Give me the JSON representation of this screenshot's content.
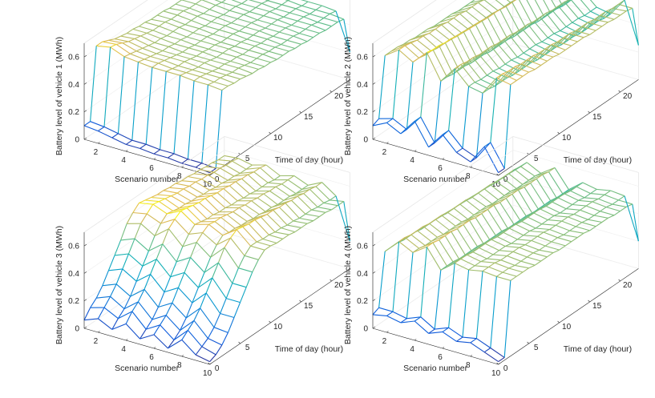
{
  "figure": {
    "background": "#ffffff",
    "box_color": "#e6e6e6",
    "axis_color": "#262626"
  },
  "chart_data": [
    {
      "type": "surface-mesh",
      "ylabel": "Battery level of vehicle 1 (MWh)",
      "xlabel": "Scenario number",
      "tlabel": "Time of day (hour)",
      "zlim": [
        0,
        0.7
      ],
      "zticks": [
        "0",
        "0.2",
        "0.4",
        "0.6"
      ],
      "xticks": [
        "2",
        "4",
        "6",
        "8",
        "10"
      ],
      "tticks": [
        "0",
        "5",
        "10",
        "15",
        "20"
      ],
      "scenarios": [
        1,
        2,
        3,
        4,
        5,
        6,
        7,
        8,
        9,
        10
      ],
      "hours": [
        0,
        1,
        2,
        3,
        4,
        5,
        6,
        7,
        8,
        9,
        10,
        11,
        12,
        13,
        14,
        15,
        16,
        17,
        18,
        19,
        20,
        21,
        22,
        23
      ],
      "levels": [
        [
          0.1,
          0.1,
          0.62,
          0.62,
          0.6,
          0.58,
          0.57,
          0.56,
          0.56,
          0.55,
          0.55,
          0.54,
          0.54,
          0.54,
          0.53,
          0.53,
          0.53,
          0.52,
          0.52,
          0.52,
          0.51,
          0.51,
          0.5,
          0.5
        ],
        [
          0.09,
          0.09,
          0.64,
          0.63,
          0.61,
          0.59,
          0.58,
          0.57,
          0.56,
          0.55,
          0.55,
          0.55,
          0.54,
          0.54,
          0.54,
          0.53,
          0.53,
          0.53,
          0.52,
          0.52,
          0.51,
          0.51,
          0.5,
          0.5
        ],
        [
          0.07,
          0.07,
          0.6,
          0.59,
          0.58,
          0.57,
          0.56,
          0.55,
          0.55,
          0.54,
          0.54,
          0.54,
          0.53,
          0.53,
          0.53,
          0.52,
          0.52,
          0.52,
          0.51,
          0.51,
          0.51,
          0.5,
          0.5,
          0.5
        ],
        [
          0.05,
          0.05,
          0.59,
          0.58,
          0.57,
          0.56,
          0.55,
          0.55,
          0.54,
          0.54,
          0.53,
          0.53,
          0.53,
          0.52,
          0.52,
          0.52,
          0.51,
          0.51,
          0.51,
          0.5,
          0.5,
          0.5,
          0.49,
          0.49
        ],
        [
          0.05,
          0.05,
          0.58,
          0.58,
          0.57,
          0.56,
          0.55,
          0.54,
          0.54,
          0.53,
          0.53,
          0.53,
          0.52,
          0.52,
          0.52,
          0.51,
          0.51,
          0.51,
          0.5,
          0.5,
          0.5,
          0.49,
          0.49,
          0.49
        ],
        [
          0.04,
          0.04,
          0.58,
          0.57,
          0.56,
          0.56,
          0.55,
          0.54,
          0.54,
          0.53,
          0.53,
          0.52,
          0.52,
          0.52,
          0.51,
          0.51,
          0.51,
          0.5,
          0.5,
          0.5,
          0.49,
          0.49,
          0.49,
          0.48
        ],
        [
          0.04,
          0.04,
          0.58,
          0.57,
          0.56,
          0.55,
          0.55,
          0.54,
          0.53,
          0.53,
          0.53,
          0.52,
          0.52,
          0.51,
          0.51,
          0.51,
          0.5,
          0.5,
          0.5,
          0.49,
          0.49,
          0.49,
          0.48,
          0.48
        ],
        [
          0.03,
          0.03,
          0.57,
          0.57,
          0.56,
          0.55,
          0.54,
          0.54,
          0.53,
          0.53,
          0.52,
          0.52,
          0.52,
          0.51,
          0.51,
          0.5,
          0.5,
          0.5,
          0.49,
          0.49,
          0.49,
          0.48,
          0.48,
          0.48
        ],
        [
          0.03,
          0.03,
          0.57,
          0.56,
          0.56,
          0.55,
          0.54,
          0.54,
          0.53,
          0.52,
          0.52,
          0.52,
          0.51,
          0.51,
          0.5,
          0.5,
          0.5,
          0.49,
          0.49,
          0.49,
          0.48,
          0.48,
          0.48,
          0.47
        ],
        [
          0.02,
          0.02,
          0.56,
          0.56,
          0.55,
          0.55,
          0.54,
          0.53,
          0.53,
          0.52,
          0.52,
          0.51,
          0.51,
          0.51,
          0.5,
          0.5,
          0.49,
          0.49,
          0.49,
          0.48,
          0.48,
          0.48,
          0.47,
          0.2
        ]
      ]
    },
    {
      "type": "surface-mesh",
      "ylabel": "Battery level of vehicle 2 (MWh)",
      "xlabel": "Scenario number",
      "tlabel": "Time of day (hour)",
      "zlim": [
        0,
        0.7
      ],
      "zticks": [
        "0",
        "0.2",
        "0.4",
        "0.6"
      ],
      "xticks": [
        "2",
        "4",
        "6",
        "8",
        "10"
      ],
      "tticks": [
        "0",
        "5",
        "10",
        "15",
        "20"
      ],
      "scenarios": [
        1,
        2,
        3,
        4,
        5,
        6,
        7,
        8,
        9,
        10
      ],
      "hours": [
        0,
        1,
        2,
        3,
        4,
        5,
        6,
        7,
        8,
        9,
        10,
        11,
        12,
        13,
        14,
        15,
        16,
        17,
        18,
        19,
        20,
        21,
        22,
        23
      ],
      "levels": [
        [
          0.1,
          0.12,
          0.55,
          0.55,
          0.55,
          0.54,
          0.54,
          0.53,
          0.53,
          0.53,
          0.52,
          0.52,
          0.52,
          0.52,
          0.51,
          0.51,
          0.51,
          0.51,
          0.5,
          0.5,
          0.5,
          0.49,
          0.49,
          0.48
        ],
        [
          0.15,
          0.15,
          0.62,
          0.62,
          0.61,
          0.6,
          0.6,
          0.59,
          0.59,
          0.59,
          0.58,
          0.58,
          0.58,
          0.57,
          0.57,
          0.57,
          0.56,
          0.56,
          0.56,
          0.55,
          0.55,
          0.55,
          0.54,
          0.54
        ],
        [
          0.1,
          0.1,
          0.56,
          0.56,
          0.55,
          0.55,
          0.54,
          0.54,
          0.54,
          0.53,
          0.53,
          0.53,
          0.52,
          0.52,
          0.52,
          0.52,
          0.51,
          0.51,
          0.51,
          0.5,
          0.5,
          0.5,
          0.49,
          0.49
        ],
        [
          0.22,
          0.22,
          0.66,
          0.65,
          0.65,
          0.64,
          0.64,
          0.63,
          0.63,
          0.62,
          0.62,
          0.62,
          0.61,
          0.61,
          0.61,
          0.6,
          0.6,
          0.6,
          0.59,
          0.59,
          0.59,
          0.58,
          0.58,
          0.58
        ],
        [
          0.06,
          0.06,
          0.48,
          0.48,
          0.47,
          0.47,
          0.47,
          0.46,
          0.46,
          0.46,
          0.45,
          0.45,
          0.45,
          0.45,
          0.44,
          0.44,
          0.44,
          0.44,
          0.43,
          0.43,
          0.43,
          0.43,
          0.42,
          0.42
        ],
        [
          0.18,
          0.18,
          0.6,
          0.6,
          0.59,
          0.59,
          0.58,
          0.58,
          0.58,
          0.57,
          0.57,
          0.57,
          0.56,
          0.56,
          0.56,
          0.55,
          0.55,
          0.55,
          0.54,
          0.54,
          0.54,
          0.53,
          0.53,
          0.53
        ],
        [
          0.08,
          0.08,
          0.5,
          0.5,
          0.49,
          0.49,
          0.49,
          0.48,
          0.48,
          0.48,
          0.47,
          0.47,
          0.47,
          0.47,
          0.46,
          0.46,
          0.46,
          0.45,
          0.45,
          0.45,
          0.45,
          0.44,
          0.44,
          0.44
        ],
        [
          0.04,
          0.04,
          0.48,
          0.48,
          0.47,
          0.47,
          0.47,
          0.46,
          0.46,
          0.46,
          0.46,
          0.45,
          0.45,
          0.45,
          0.45,
          0.44,
          0.44,
          0.44,
          0.43,
          0.43,
          0.43,
          0.43,
          0.42,
          0.42
        ],
        [
          0.18,
          0.18,
          0.62,
          0.62,
          0.61,
          0.61,
          0.6,
          0.6,
          0.6,
          0.59,
          0.59,
          0.59,
          0.58,
          0.58,
          0.58,
          0.57,
          0.57,
          0.57,
          0.56,
          0.56,
          0.56,
          0.55,
          0.55,
          0.55
        ],
        [
          0.02,
          0.02,
          0.6,
          0.6,
          0.6,
          0.6,
          0.59,
          0.59,
          0.59,
          0.59,
          0.58,
          0.58,
          0.58,
          0.58,
          0.58,
          0.57,
          0.57,
          0.57,
          0.57,
          0.56,
          0.56,
          0.56,
          0.55,
          0.25
        ]
      ]
    },
    {
      "type": "surface-mesh",
      "ylabel": "Battery level of vehicle 3 (MWh)",
      "xlabel": "Scenario number",
      "tlabel": "Time of day (hour)",
      "zlim": [
        0,
        0.7
      ],
      "zticks": [
        "0",
        "0.2",
        "0.4",
        "0.6"
      ],
      "xticks": [
        "2",
        "4",
        "6",
        "8",
        "10"
      ],
      "tticks": [
        "0",
        "5",
        "10",
        "15",
        "20"
      ],
      "scenarios": [
        1,
        2,
        3,
        4,
        5,
        6,
        7,
        8,
        9,
        10
      ],
      "hours": [
        0,
        1,
        2,
        3,
        4,
        5,
        6,
        7,
        8,
        9,
        10,
        11,
        12,
        13,
        14,
        15,
        16,
        17,
        18,
        19,
        20,
        21,
        22,
        23
      ],
      "levels": [
        [
          0.06,
          0.12,
          0.16,
          0.22,
          0.3,
          0.38,
          0.46,
          0.55,
          0.6,
          0.64,
          0.63,
          0.62,
          0.61,
          0.61,
          0.6,
          0.6,
          0.59,
          0.59,
          0.58,
          0.58,
          0.57,
          0.57,
          0.56,
          0.56
        ],
        [
          0.1,
          0.15,
          0.2,
          0.26,
          0.34,
          0.42,
          0.5,
          0.58,
          0.62,
          0.66,
          0.65,
          0.64,
          0.63,
          0.62,
          0.62,
          0.61,
          0.61,
          0.6,
          0.6,
          0.59,
          0.59,
          0.58,
          0.58,
          0.57
        ],
        [
          0.05,
          0.1,
          0.14,
          0.2,
          0.28,
          0.36,
          0.44,
          0.52,
          0.58,
          0.62,
          0.61,
          0.6,
          0.6,
          0.59,
          0.59,
          0.58,
          0.58,
          0.57,
          0.57,
          0.56,
          0.56,
          0.55,
          0.55,
          0.55
        ],
        [
          0.12,
          0.18,
          0.22,
          0.28,
          0.36,
          0.44,
          0.52,
          0.6,
          0.64,
          0.67,
          0.66,
          0.65,
          0.64,
          0.64,
          0.63,
          0.62,
          0.62,
          0.61,
          0.61,
          0.6,
          0.6,
          0.59,
          0.59,
          0.58
        ],
        [
          0.04,
          0.08,
          0.12,
          0.18,
          0.26,
          0.34,
          0.42,
          0.5,
          0.56,
          0.6,
          0.59,
          0.58,
          0.58,
          0.57,
          0.57,
          0.56,
          0.56,
          0.55,
          0.55,
          0.54,
          0.54,
          0.54,
          0.53,
          0.53
        ],
        [
          0.1,
          0.14,
          0.18,
          0.24,
          0.32,
          0.4,
          0.48,
          0.56,
          0.6,
          0.63,
          0.62,
          0.62,
          0.61,
          0.6,
          0.6,
          0.59,
          0.59,
          0.58,
          0.58,
          0.57,
          0.57,
          0.56,
          0.56,
          0.56
        ],
        [
          0.03,
          0.06,
          0.1,
          0.16,
          0.24,
          0.32,
          0.4,
          0.48,
          0.54,
          0.58,
          0.57,
          0.57,
          0.56,
          0.56,
          0.55,
          0.55,
          0.54,
          0.54,
          0.53,
          0.53,
          0.53,
          0.52,
          0.52,
          0.52
        ],
        [
          0.12,
          0.16,
          0.2,
          0.26,
          0.34,
          0.42,
          0.5,
          0.58,
          0.62,
          0.65,
          0.64,
          0.63,
          0.63,
          0.62,
          0.61,
          0.61,
          0.6,
          0.6,
          0.59,
          0.59,
          0.58,
          0.58,
          0.57,
          0.57
        ],
        [
          0.04,
          0.07,
          0.1,
          0.15,
          0.22,
          0.3,
          0.38,
          0.46,
          0.52,
          0.56,
          0.56,
          0.55,
          0.55,
          0.54,
          0.54,
          0.53,
          0.53,
          0.52,
          0.52,
          0.52,
          0.51,
          0.51,
          0.5,
          0.5
        ],
        [
          0.02,
          0.04,
          0.08,
          0.14,
          0.22,
          0.3,
          0.38,
          0.46,
          0.52,
          0.56,
          0.56,
          0.55,
          0.55,
          0.55,
          0.54,
          0.54,
          0.54,
          0.53,
          0.53,
          0.53,
          0.52,
          0.52,
          0.52,
          0.2
        ]
      ]
    },
    {
      "type": "surface-mesh",
      "ylabel": "Battery level of vehicle 4 (MWh)",
      "xlabel": "Scenario number",
      "tlabel": "Time of day (hour)",
      "zlim": [
        0,
        0.7
      ],
      "zticks": [
        "0",
        "0.2",
        "0.4",
        "0.6"
      ],
      "xticks": [
        "2",
        "4",
        "6",
        "8",
        "10"
      ],
      "tticks": [
        "0",
        "5",
        "10",
        "15",
        "20"
      ],
      "scenarios": [
        1,
        2,
        3,
        4,
        5,
        6,
        7,
        8,
        9,
        10
      ],
      "hours": [
        0,
        1,
        2,
        3,
        4,
        5,
        6,
        7,
        8,
        9,
        10,
        11,
        12,
        13,
        14,
        15,
        16,
        17,
        18,
        19,
        20,
        21,
        22,
        23
      ],
      "levels": [
        [
          0.1,
          0.12,
          0.5,
          0.5,
          0.5,
          0.49,
          0.49,
          0.49,
          0.48,
          0.48,
          0.48,
          0.48,
          0.47,
          0.47,
          0.47,
          0.47,
          0.46,
          0.46,
          0.46,
          0.46,
          0.45,
          0.45,
          0.45,
          0.45
        ],
        [
          0.12,
          0.12,
          0.6,
          0.6,
          0.59,
          0.59,
          0.59,
          0.58,
          0.58,
          0.58,
          0.57,
          0.57,
          0.57,
          0.57,
          0.56,
          0.56,
          0.56,
          0.56,
          0.55,
          0.55,
          0.55,
          0.55,
          0.54,
          0.54
        ],
        [
          0.1,
          0.1,
          0.55,
          0.55,
          0.54,
          0.54,
          0.54,
          0.53,
          0.53,
          0.53,
          0.53,
          0.52,
          0.52,
          0.52,
          0.52,
          0.51,
          0.51,
          0.51,
          0.51,
          0.5,
          0.5,
          0.5,
          0.5,
          0.49
        ],
        [
          0.14,
          0.14,
          0.62,
          0.62,
          0.61,
          0.61,
          0.61,
          0.6,
          0.6,
          0.6,
          0.59,
          0.59,
          0.59,
          0.59,
          0.58,
          0.58,
          0.58,
          0.58,
          0.57,
          0.57,
          0.57,
          0.57,
          0.56,
          0.56
        ],
        [
          0.08,
          0.08,
          0.48,
          0.48,
          0.48,
          0.47,
          0.47,
          0.47,
          0.47,
          0.46,
          0.46,
          0.46,
          0.46,
          0.45,
          0.45,
          0.45,
          0.45,
          0.44,
          0.44,
          0.44,
          0.44,
          0.43,
          0.43,
          0.43
        ],
        [
          0.12,
          0.12,
          0.56,
          0.56,
          0.56,
          0.55,
          0.55,
          0.55,
          0.55,
          0.54,
          0.54,
          0.54,
          0.54,
          0.53,
          0.53,
          0.53,
          0.53,
          0.52,
          0.52,
          0.52,
          0.52,
          0.51,
          0.51,
          0.51
        ],
        [
          0.08,
          0.08,
          0.54,
          0.54,
          0.54,
          0.53,
          0.53,
          0.53,
          0.53,
          0.52,
          0.52,
          0.52,
          0.52,
          0.51,
          0.51,
          0.51,
          0.51,
          0.5,
          0.5,
          0.5,
          0.5,
          0.49,
          0.49,
          0.49
        ],
        [
          0.1,
          0.1,
          0.56,
          0.56,
          0.56,
          0.55,
          0.55,
          0.55,
          0.55,
          0.54,
          0.54,
          0.54,
          0.54,
          0.53,
          0.53,
          0.53,
          0.53,
          0.52,
          0.52,
          0.52,
          0.52,
          0.51,
          0.51,
          0.51
        ],
        [
          0.06,
          0.06,
          0.55,
          0.55,
          0.55,
          0.54,
          0.54,
          0.54,
          0.54,
          0.53,
          0.53,
          0.53,
          0.53,
          0.52,
          0.52,
          0.52,
          0.52,
          0.51,
          0.51,
          0.51,
          0.51,
          0.5,
          0.5,
          0.5
        ],
        [
          0.02,
          0.02,
          0.55,
          0.55,
          0.55,
          0.55,
          0.54,
          0.54,
          0.54,
          0.54,
          0.53,
          0.53,
          0.53,
          0.53,
          0.53,
          0.52,
          0.52,
          0.52,
          0.52,
          0.51,
          0.51,
          0.51,
          0.5,
          0.2
        ]
      ]
    }
  ]
}
